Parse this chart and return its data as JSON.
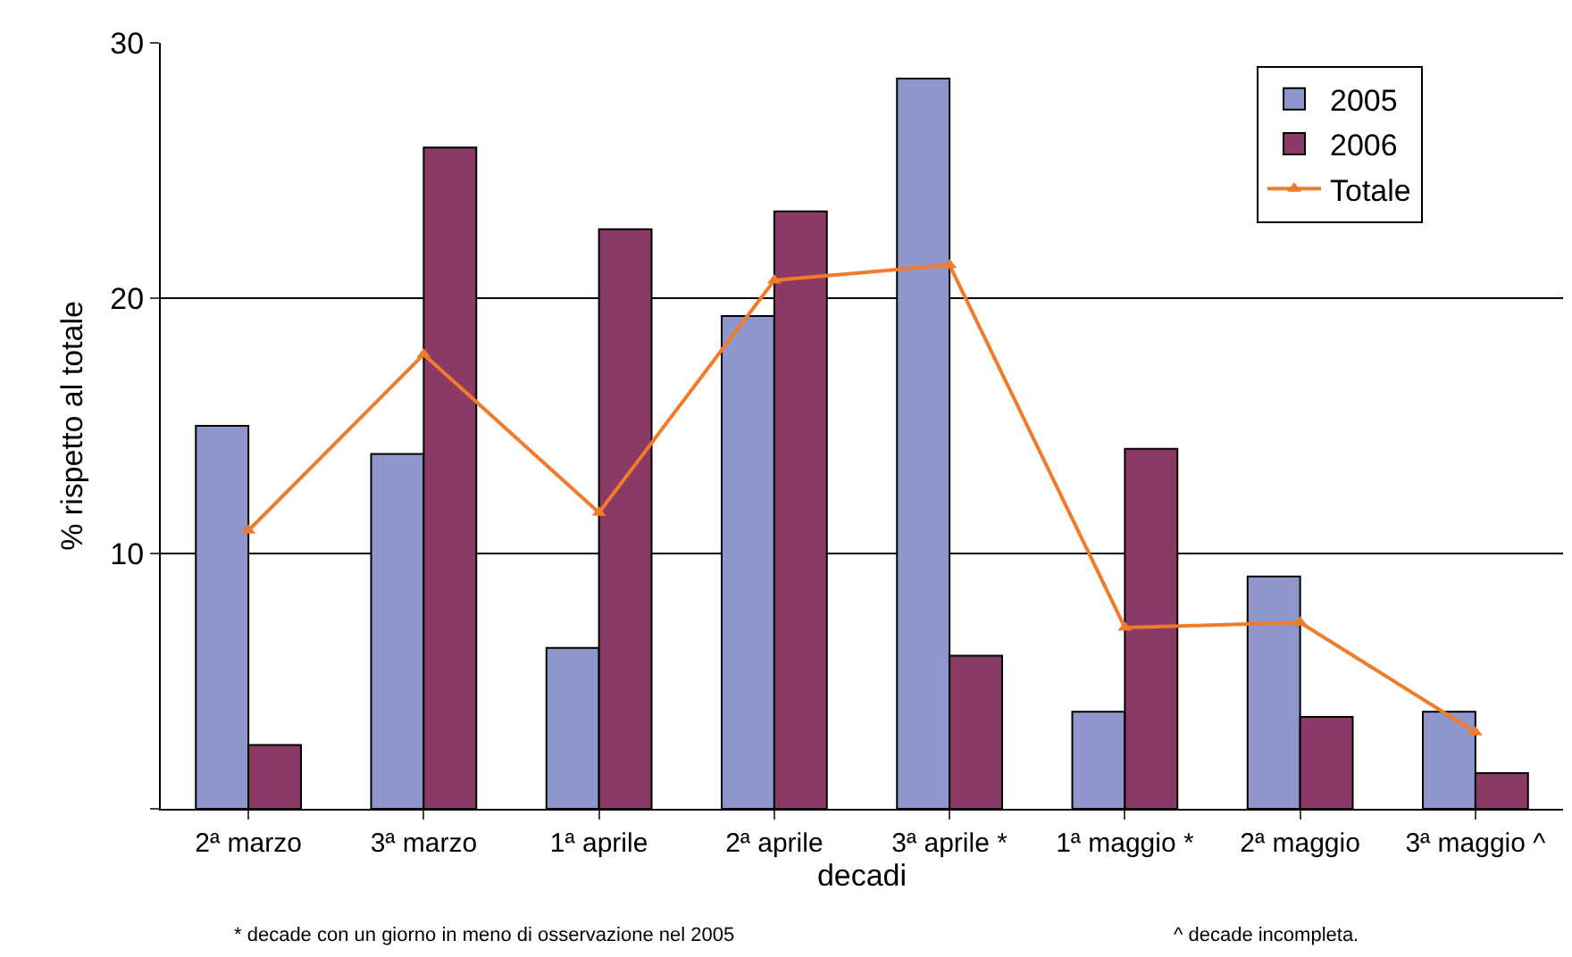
{
  "chart_data": {
    "type": "bar",
    "xlabel": "decadi",
    "ylabel": "% rispetto al totale",
    "categories": [
      "2ª marzo",
      "3ª marzo",
      "1ª aprile",
      "2ª aprile",
      "3ª aprile *",
      "1ª maggio *",
      "2ª maggio",
      "3ª maggio ^"
    ],
    "series": [
      {
        "name": "2005",
        "color": "#8e96cc",
        "values": [
          15.0,
          13.9,
          6.3,
          19.3,
          28.6,
          3.8,
          9.1,
          3.8
        ]
      },
      {
        "name": "2006",
        "color": "#8b3a66",
        "values": [
          2.5,
          25.9,
          22.7,
          23.4,
          6.0,
          14.1,
          3.6,
          1.4
        ]
      },
      {
        "name": "Totale",
        "type": "line",
        "color": "#f07b2b",
        "marker": "triangle",
        "values": [
          10.9,
          17.8,
          11.6,
          20.7,
          21.3,
          7.1,
          7.3,
          3.0
        ]
      }
    ],
    "ylim": [
      0,
      30
    ],
    "yticks": [
      {
        "value": 0,
        "label": null
      },
      10,
      20,
      30
    ],
    "grid": "y",
    "legend": "top right",
    "annotations": [
      "* decade con un giorno in meno di osservazione nel 2005",
      "^ decade incompleta."
    ]
  }
}
